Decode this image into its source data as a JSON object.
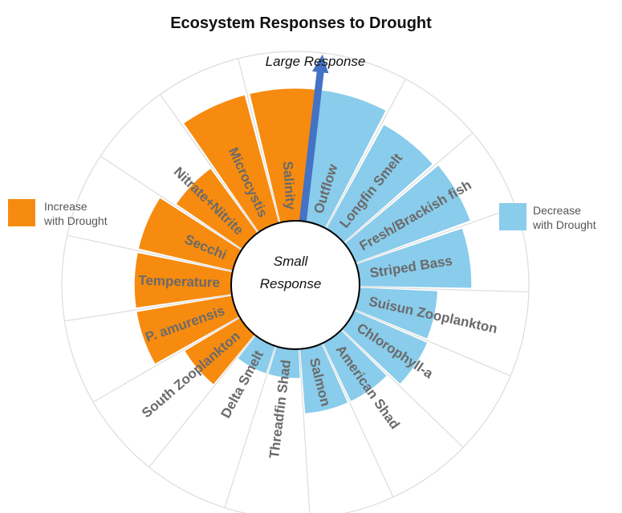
{
  "chart_data": {
    "type": "radial-bar",
    "title": "Ecosystem Responses to Drought",
    "annotations": {
      "outer": "Large Response",
      "center_line1": "Small",
      "center_line2": "Response"
    },
    "legend": [
      {
        "line1": "Increase",
        "line2": "with Drought",
        "color": "#F68B0F",
        "position": "left"
      },
      {
        "line1": "Decrease",
        "line2": "with Drought",
        "color": "#89CCEB",
        "position": "right"
      }
    ],
    "scale": [
      0,
      1
    ],
    "grid": true,
    "categories": [
      {
        "name": "Outflow",
        "value": 0.78,
        "group": "decrease"
      },
      {
        "name": "Longfin Smelt",
        "value": 0.7,
        "group": "decrease"
      },
      {
        "name": "Fresh/Brackish fish",
        "value": 0.72,
        "group": "decrease"
      },
      {
        "name": "Striped Bass",
        "value": 0.66,
        "group": "decrease"
      },
      {
        "name": "Suisun Zooplankton",
        "value": 0.46,
        "group": "decrease"
      },
      {
        "name": "Chlorophyll-a",
        "value": 0.47,
        "group": "decrease"
      },
      {
        "name": "American Shad",
        "value": 0.38,
        "group": "decrease"
      },
      {
        "name": "Salmon",
        "value": 0.38,
        "group": "decrease"
      },
      {
        "name": "Threadfin Shad",
        "value": 0.17,
        "group": "decrease"
      },
      {
        "name": "Delta Smelt",
        "value": 0.17,
        "group": "decrease"
      },
      {
        "name": "South Zooplankton",
        "value": 0.38,
        "group": "increase"
      },
      {
        "name": "P. amurensis",
        "value": 0.57,
        "group": "increase"
      },
      {
        "name": "Temperature",
        "value": 0.57,
        "group": "increase"
      },
      {
        "name": "Secchi",
        "value": 0.57,
        "group": "increase"
      },
      {
        "name": "Nitrate+Nitrite",
        "value": 0.47,
        "group": "increase"
      },
      {
        "name": "Microcystis",
        "value": 0.78,
        "group": "increase"
      },
      {
        "name": "Salinity",
        "value": 0.78,
        "group": "increase"
      }
    ]
  }
}
